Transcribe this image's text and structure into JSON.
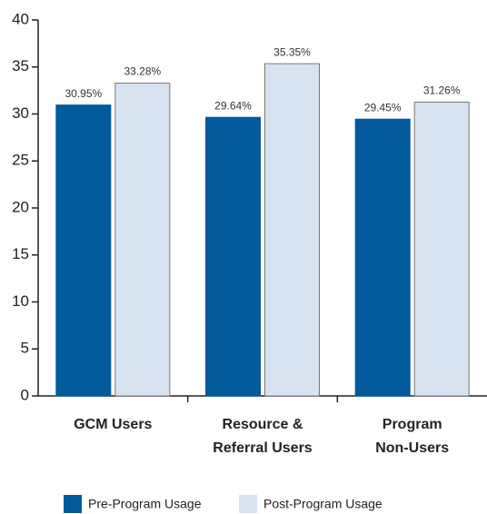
{
  "chart_data": {
    "type": "bar",
    "categories": [
      [
        "GCM Users"
      ],
      [
        "Resource &",
        "Referral Users"
      ],
      [
        "Program",
        "Non-Users"
      ]
    ],
    "series": [
      {
        "name": "Pre-Program Usage",
        "color": "#005a9c",
        "values": [
          30.95,
          29.64,
          29.45
        ],
        "value_labels": [
          "30.95%",
          "29.64%",
          "29.45%"
        ]
      },
      {
        "name": "Post-Program Usage",
        "color": "#d7e3f1",
        "values": [
          33.28,
          35.35,
          31.26
        ],
        "value_labels": [
          "33.28%",
          "35.35%",
          "31.26%"
        ]
      }
    ],
    "ylim": [
      0,
      40
    ],
    "yticks": [
      0,
      5,
      10,
      15,
      20,
      25,
      30,
      35,
      40
    ],
    "legend": "bottom"
  }
}
